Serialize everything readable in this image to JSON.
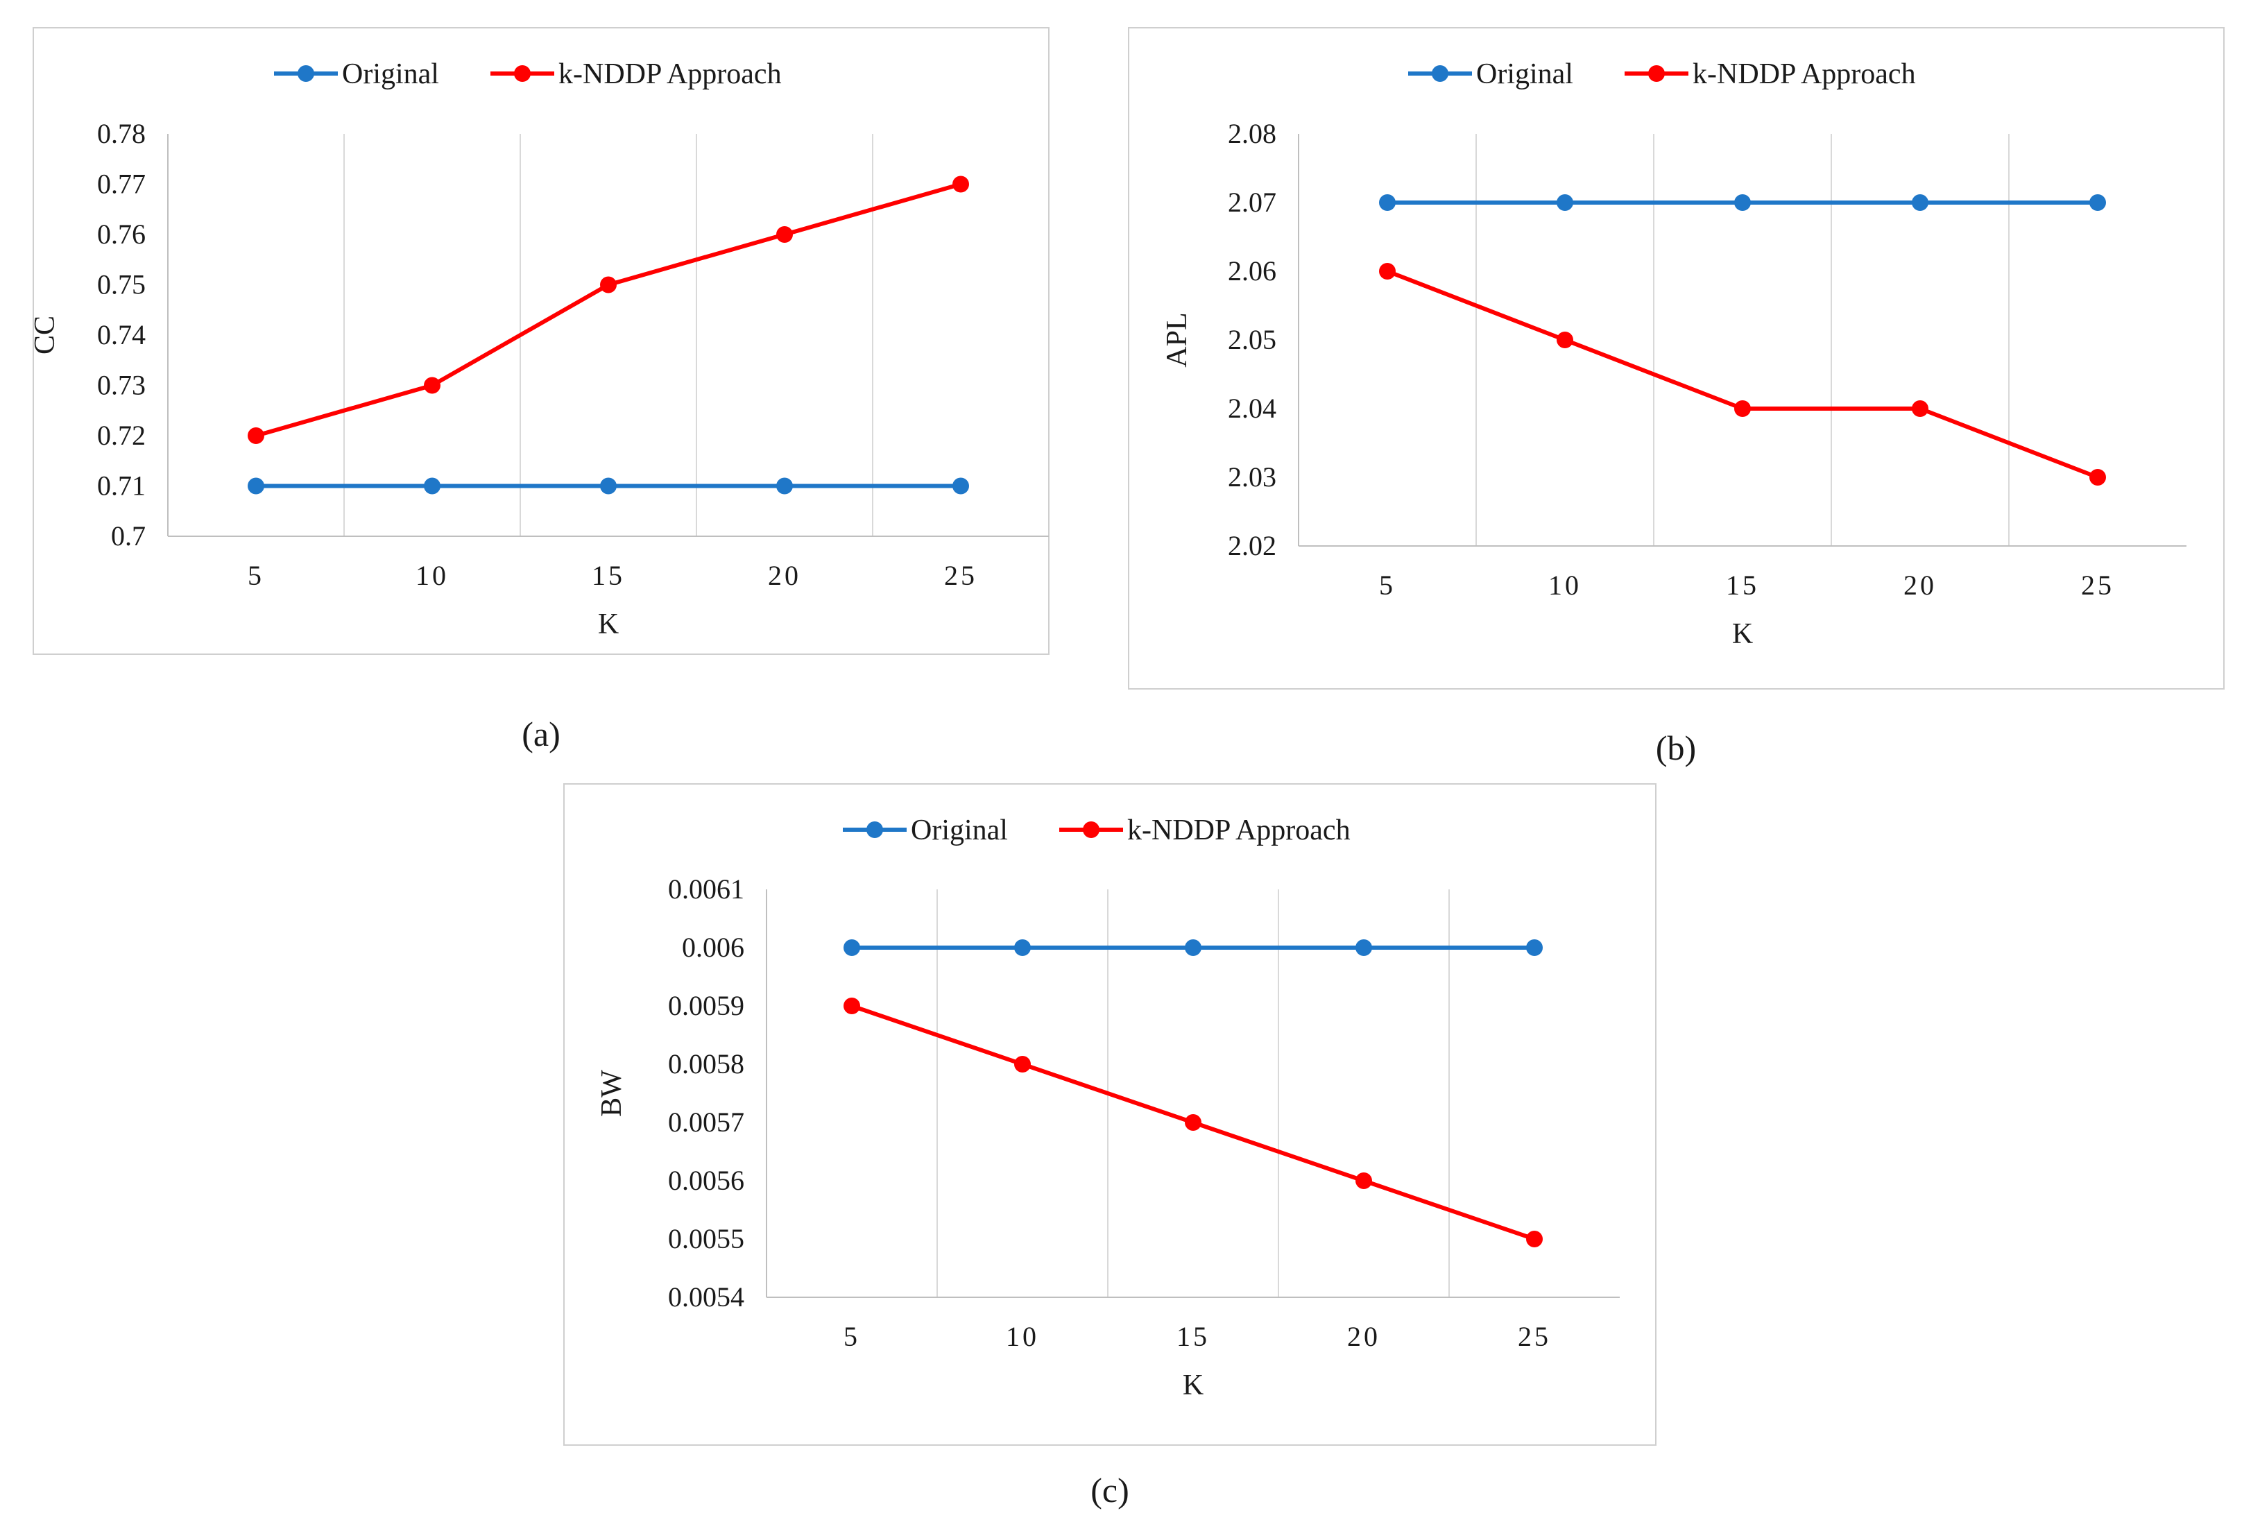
{
  "colors": {
    "original": "#1f77c8",
    "knddp": "#ff0000"
  },
  "legend": {
    "original": "Original",
    "knddp": "k-NDDP Approach"
  },
  "chart_data": [
    {
      "type": "line",
      "caption": "(a)",
      "xlabel": "K",
      "ylabel": "CC",
      "x": [
        5,
        10,
        15,
        20,
        25
      ],
      "ylim": [
        0.7,
        0.78
      ],
      "yticks": [
        "0.7",
        "0.71",
        "0.72",
        "0.73",
        "0.74",
        "0.75",
        "0.76",
        "0.77",
        "0.78"
      ],
      "legend_position": "top",
      "series": [
        {
          "name": "Original",
          "color": "#1f77c8",
          "values": [
            0.71,
            0.71,
            0.71,
            0.71,
            0.71
          ]
        },
        {
          "name": "k-NDDP Approach",
          "color": "#ff0000",
          "values": [
            0.72,
            0.73,
            0.75,
            0.76,
            0.77
          ]
        }
      ]
    },
    {
      "type": "line",
      "caption": "(b)",
      "xlabel": "K",
      "ylabel": "APL",
      "x": [
        5,
        10,
        15,
        20,
        25
      ],
      "ylim": [
        2.02,
        2.08
      ],
      "yticks": [
        "2.02",
        "2.03",
        "2.04",
        "2.05",
        "2.06",
        "2.07",
        "2.08"
      ],
      "legend_position": "top",
      "series": [
        {
          "name": "Original",
          "color": "#1f77c8",
          "values": [
            2.07,
            2.07,
            2.07,
            2.07,
            2.07
          ]
        },
        {
          "name": "k-NDDP Approach",
          "color": "#ff0000",
          "values": [
            2.06,
            2.05,
            2.04,
            2.04,
            2.03
          ]
        }
      ]
    },
    {
      "type": "line",
      "caption": "(c)",
      "xlabel": "K",
      "ylabel": "BW",
      "x": [
        5,
        10,
        15,
        20,
        25
      ],
      "ylim": [
        0.0054,
        0.0061
      ],
      "yticks": [
        "0.0054",
        "0.0055",
        "0.0056",
        "0.0057",
        "0.0058",
        "0.0059",
        "0.006",
        "0.0061"
      ],
      "legend_position": "top",
      "series": [
        {
          "name": "Original",
          "color": "#1f77c8",
          "values": [
            0.006,
            0.006,
            0.006,
            0.006,
            0.006
          ]
        },
        {
          "name": "k-NDDP Approach",
          "color": "#ff0000",
          "values": [
            0.0059,
            0.0058,
            0.0057,
            0.0056,
            0.0055
          ]
        }
      ]
    }
  ]
}
